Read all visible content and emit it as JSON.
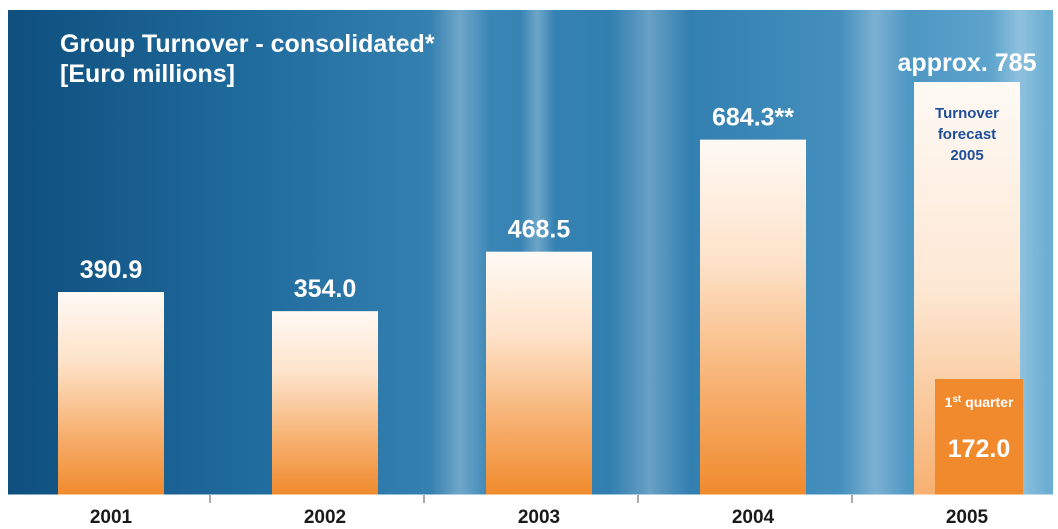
{
  "chart_data": {
    "type": "bar",
    "title": [
      "Group Turnover - consolidated*",
      "[Euro millions]"
    ],
    "categories": [
      "2001",
      "2002",
      "2003",
      "2004",
      "2005"
    ],
    "values": [
      390.9,
      354.0,
      468.5,
      684.3,
      785
    ],
    "value_labels": [
      "390.9",
      "354.0",
      "468.5",
      "684.3**",
      "approx. 785"
    ],
    "highlight_category": "2005",
    "forecast": {
      "category": "2005",
      "label_lines": [
        "Turnover",
        "forecast",
        "2005"
      ],
      "quarter_label": "1st quarter",
      "quarter_value": 172.0,
      "quarter_value_label": "172.0"
    },
    "ylim": [
      0,
      880
    ],
    "grid": false,
    "legend": "none"
  },
  "colors": {
    "background": "#1f6a9c",
    "bar_top": "#fffaf5",
    "bar_bottom": "#f08a2c",
    "forecast_text": "#1f4f9a",
    "highlight_year": "#f08a2c",
    "quarter_box": "#f08a2c"
  }
}
